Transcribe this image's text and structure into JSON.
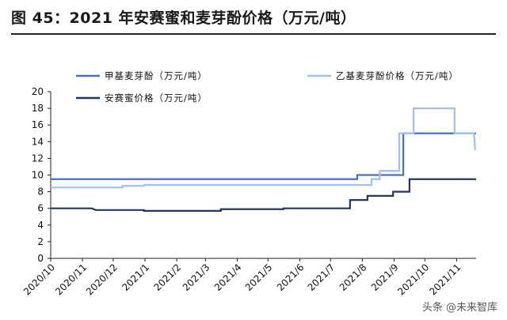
{
  "figure": {
    "title": "图 45：2021 年安赛蜜和麦芽酚价格（万元/吨）",
    "watermark": "头条 @未来智库"
  },
  "chart_data": {
    "type": "line",
    "title": "图 45：2021 年安赛蜜和麦芽酚价格（万元/吨）",
    "xlabel": "",
    "ylabel": "",
    "x_type": "date",
    "xlim": [
      "2020-10-01",
      "2021-11-20"
    ],
    "ylim": [
      0,
      20
    ],
    "yticks": [
      0,
      2,
      4,
      6,
      8,
      10,
      12,
      14,
      16,
      18,
      20
    ],
    "xticks": [
      {
        "date": "2020-10-01",
        "label": "2020/10"
      },
      {
        "date": "2020-11-01",
        "label": "2020/11"
      },
      {
        "date": "2020-12-01",
        "label": "2020/12"
      },
      {
        "date": "2021-01-01",
        "label": "2021/1"
      },
      {
        "date": "2021-02-01",
        "label": "2021/2"
      },
      {
        "date": "2021-03-01",
        "label": "2021/3"
      },
      {
        "date": "2021-04-01",
        "label": "2021/4"
      },
      {
        "date": "2021-05-01",
        "label": "2021/5"
      },
      {
        "date": "2021-06-01",
        "label": "2021/6"
      },
      {
        "date": "2021-07-01",
        "label": "2021/7"
      },
      {
        "date": "2021-08-01",
        "label": "2021/8"
      },
      {
        "date": "2021-09-01",
        "label": "2021/9"
      },
      {
        "date": "2021-10-01",
        "label": "2021/10"
      },
      {
        "date": "2021-11-01",
        "label": "2021/11"
      }
    ],
    "grid": false,
    "legend_position": "top",
    "series": [
      {
        "name": "甲基麦芽酚（万元/吨）",
        "color": "#4472c4",
        "points": [
          [
            "2020-10-01",
            9.5
          ],
          [
            "2021-07-27",
            9.5
          ],
          [
            "2021-07-27",
            10.0
          ],
          [
            "2021-09-10",
            10.0
          ],
          [
            "2021-09-10",
            15.0
          ],
          [
            "2021-11-20",
            15.0
          ]
        ]
      },
      {
        "name": "乙基麦芽酚价格（万元/吨）",
        "color": "#9dc3e6",
        "points": [
          [
            "2020-10-01",
            8.5
          ],
          [
            "2020-12-10",
            8.5
          ],
          [
            "2020-12-10",
            8.7
          ],
          [
            "2020-12-31",
            8.7
          ],
          [
            "2020-12-31",
            8.8
          ],
          [
            "2021-07-20",
            8.8
          ],
          [
            "2021-08-10",
            8.8
          ],
          [
            "2021-08-10",
            9.5
          ],
          [
            "2021-08-18",
            9.5
          ],
          [
            "2021-08-18",
            10.5
          ],
          [
            "2021-09-06",
            10.5
          ],
          [
            "2021-09-06",
            15.0
          ],
          [
            "2021-09-20",
            15.0
          ],
          [
            "2021-09-20",
            18.0
          ],
          [
            "2021-10-30",
            18.0
          ],
          [
            "2021-10-30",
            15.0
          ],
          [
            "2021-11-18",
            15.0
          ],
          [
            "2021-11-19",
            13.0
          ]
        ]
      },
      {
        "name": "安赛蜜价格（万元/吨）",
        "color": "#1f3864",
        "points": [
          [
            "2020-10-01",
            6.0
          ],
          [
            "2020-11-10",
            6.0
          ],
          [
            "2020-11-14",
            5.8
          ],
          [
            "2020-12-31",
            5.8
          ],
          [
            "2020-12-31",
            5.7
          ],
          [
            "2021-03-16",
            5.7
          ],
          [
            "2021-03-16",
            5.9
          ],
          [
            "2021-05-16",
            5.9
          ],
          [
            "2021-05-16",
            6.0
          ],
          [
            "2021-07-20",
            6.0
          ],
          [
            "2021-07-20",
            7.0
          ],
          [
            "2021-08-06",
            7.0
          ],
          [
            "2021-08-06",
            7.5
          ],
          [
            "2021-08-31",
            7.5
          ],
          [
            "2021-08-31",
            8.0
          ],
          [
            "2021-09-16",
            8.0
          ],
          [
            "2021-09-16",
            9.5
          ],
          [
            "2021-11-20",
            9.5
          ]
        ]
      }
    ]
  }
}
